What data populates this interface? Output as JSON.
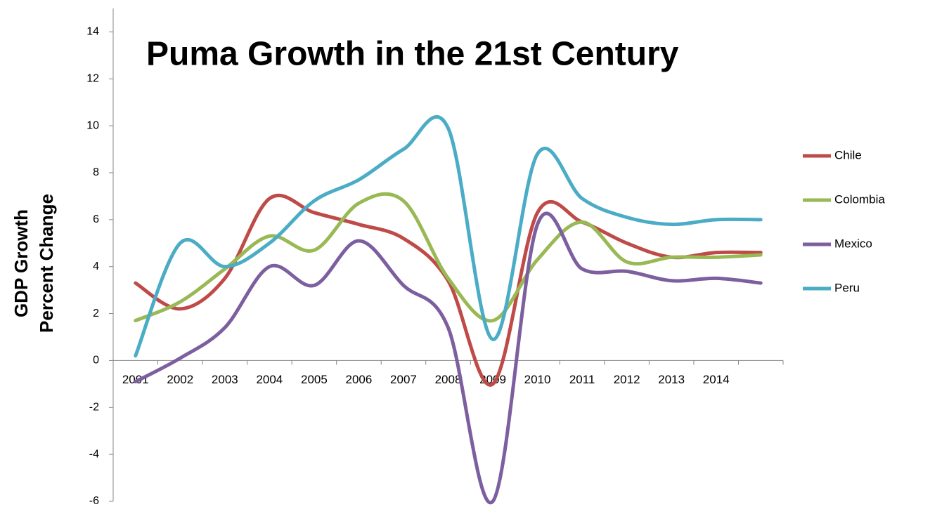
{
  "chart_data": {
    "type": "line",
    "title": "Puma Growth in the 21st Century",
    "y_label": [
      "GDP Growth",
      "Percent Change"
    ],
    "categories": [
      "2001",
      "2002",
      "2003",
      "2004",
      "2005",
      "2006",
      "2007",
      "2008",
      "2009",
      "2010",
      "2011",
      "2012",
      "2013",
      "2014",
      null
    ],
    "series": [
      {
        "name": "Chile",
        "color": "#be4b48",
        "values": [
          3.3,
          2.2,
          3.5,
          6.9,
          6.3,
          5.8,
          5.2,
          3.4,
          -1.0,
          6.3,
          5.9,
          5.0,
          4.4,
          4.6,
          4.6
        ]
      },
      {
        "name": "Colombia",
        "color": "#98b954",
        "values": [
          1.7,
          2.5,
          3.9,
          5.3,
          4.7,
          6.7,
          6.8,
          3.5,
          1.7,
          4.3,
          5.9,
          4.2,
          4.4,
          4.4,
          4.5
        ]
      },
      {
        "name": "Mexico",
        "color": "#7d5fa0",
        "values": [
          -0.9,
          0.1,
          1.4,
          4.0,
          3.2,
          5.1,
          3.2,
          1.4,
          -6.0,
          5.8,
          3.9,
          3.8,
          3.4,
          3.5,
          3.3
        ]
      },
      {
        "name": "Peru",
        "color": "#4bacc6",
        "values": [
          0.2,
          5.0,
          4.0,
          5.0,
          6.8,
          7.7,
          9.0,
          9.9,
          0.9,
          8.8,
          6.9,
          6.1,
          5.8,
          6.0,
          6.0
        ]
      }
    ],
    "ylim": [
      -6,
      15
    ],
    "yticks": [
      -6,
      -4,
      -2,
      0,
      2,
      4,
      6,
      8,
      10,
      12,
      14
    ],
    "grid": false,
    "legend": "right"
  }
}
